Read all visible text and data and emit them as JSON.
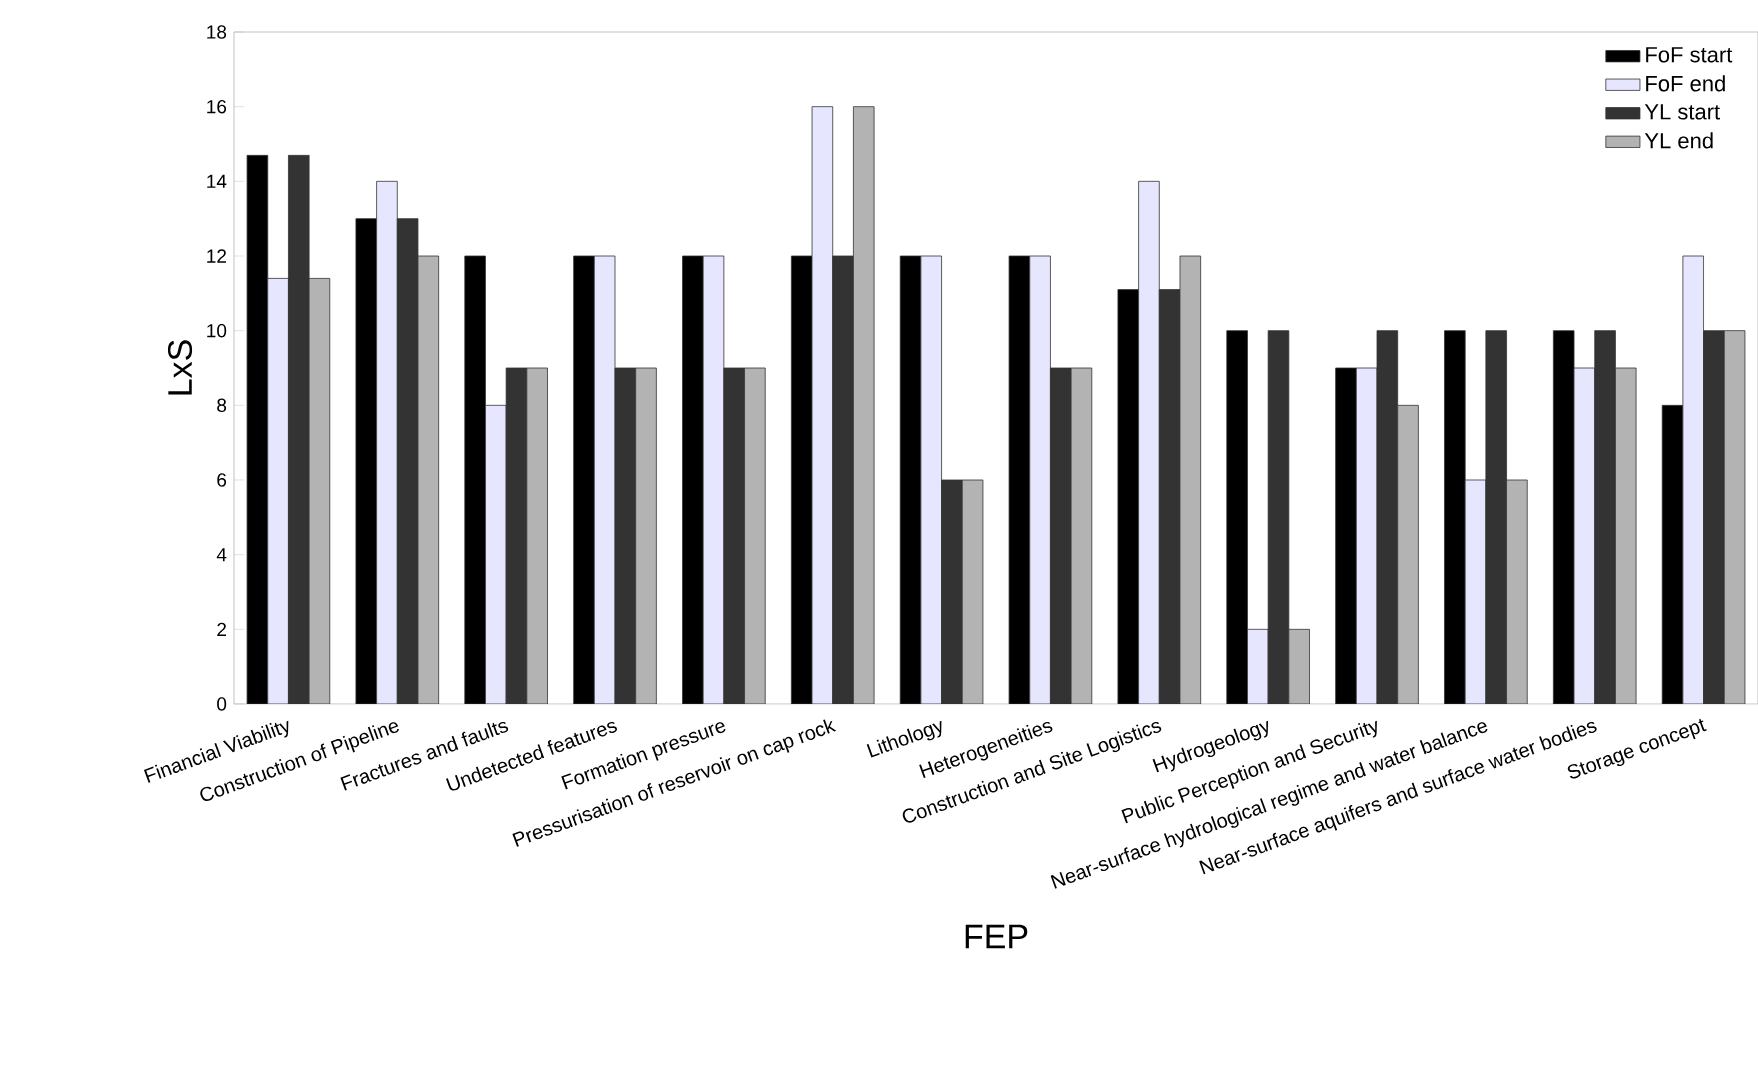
{
  "chart_data": {
    "type": "bar",
    "xlabel": "FEP",
    "ylabel": "LxS",
    "categories": [
      "Financial Viability",
      "Construction of Pipeline",
      "Fractures and faults",
      "Undetected features",
      "Formation pressure",
      "Pressurisation of reservoir on cap rock",
      "Lithology",
      "Heterogeneities",
      "Construction and Site Logistics",
      "Hydrogeology",
      "Public Perception and Security",
      "Near-surface hydrological regime and water balance",
      "Near-surface aquifers and surface water bodies",
      "Storage concept"
    ],
    "series": [
      {
        "name": "FoF start",
        "color": "#000000",
        "values": [
          14.7,
          13,
          12,
          12,
          12,
          12,
          12,
          12,
          11.1,
          10,
          9,
          10,
          10,
          8
        ]
      },
      {
        "name": "FoF end",
        "color": "#e6e6ff",
        "values": [
          11.4,
          14,
          8,
          12,
          12,
          16,
          12,
          12,
          14,
          2,
          9,
          6,
          9,
          12
        ]
      },
      {
        "name": "YL start",
        "color": "#333333",
        "values": [
          14.7,
          13,
          9,
          9,
          9,
          12,
          6,
          9,
          11.1,
          10,
          10,
          10,
          10,
          10
        ]
      },
      {
        "name": "YL end",
        "color": "#b3b3b3",
        "values": [
          11.4,
          12,
          9,
          9,
          9,
          16,
          6,
          9,
          12,
          2,
          8,
          6,
          9,
          10
        ]
      }
    ],
    "ylim": [
      0,
      18
    ],
    "yticks": [
      0,
      2,
      4,
      6,
      8,
      10,
      12,
      14,
      16,
      18
    ],
    "grid": false,
    "legend": "top right"
  }
}
